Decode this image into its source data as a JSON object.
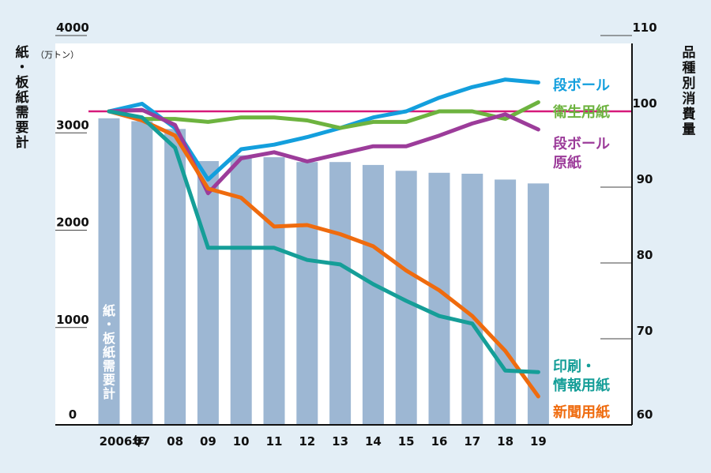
{
  "chart_data": {
    "type": "bar+line",
    "categories": [
      "2006年",
      "07",
      "08",
      "09",
      "10",
      "11",
      "12",
      "13",
      "14",
      "15",
      "16",
      "17",
      "18",
      "19"
    ],
    "left_axis": {
      "title": "紙・板紙需要計",
      "unit": "（万トン）",
      "ylim": [
        0,
        4000
      ],
      "ticks": [
        "4000",
        "3000",
        "2000",
        "1000",
        "0"
      ],
      "tick_values": [
        4000,
        3000,
        2000,
        1000,
        0
      ]
    },
    "right_axis": {
      "title": "品種別消費量",
      "ylim": [
        60,
        110
      ],
      "ticks": [
        "110",
        "100",
        "90",
        "80",
        "70",
        "60"
      ],
      "tick_values": [
        110,
        100,
        90,
        80,
        70,
        60
      ]
    },
    "reference_line": {
      "axis": "right",
      "value": 100,
      "color": "#d6197a"
    },
    "bars": {
      "name": "紙・板紙需要計",
      "label": "紙・板紙需要計",
      "color": "#9db7d3",
      "values": [
        3150,
        3120,
        3040,
        2710,
        2770,
        2750,
        2700,
        2700,
        2670,
        2610,
        2590,
        2580,
        2520,
        2480
      ]
    },
    "series": [
      {
        "name": "段ボール",
        "label": [
          "段ボール"
        ],
        "color": "#139fdd",
        "axis": "right",
        "values": [
          100.0,
          101.0,
          97.8,
          91.0,
          95.0,
          95.6,
          96.6,
          97.8,
          99.2,
          100.0,
          101.8,
          103.2,
          104.2,
          103.8
        ]
      },
      {
        "name": "衛生用紙",
        "label": [
          "衛生用紙"
        ],
        "color": "#6db33f",
        "axis": "right",
        "values": [
          100.0,
          99.0,
          99.0,
          98.6,
          99.2,
          99.2,
          98.8,
          97.8,
          98.6,
          98.6,
          100.0,
          100.0,
          99.0,
          101.2
        ]
      },
      {
        "name": "段ボール原紙",
        "label": [
          "段ボール",
          "原紙"
        ],
        "color": "#9c3c9a",
        "axis": "right",
        "values": [
          100.0,
          100.2,
          98.2,
          89.2,
          93.8,
          94.6,
          93.4,
          94.4,
          95.4,
          95.4,
          96.8,
          98.4,
          99.6,
          97.6
        ]
      },
      {
        "name": "新聞用紙",
        "label": [
          "新聞用紙"
        ],
        "color": "#ef6b0e",
        "axis": "right",
        "values": [
          100.0,
          98.8,
          96.8,
          89.8,
          88.6,
          84.8,
          85.0,
          83.8,
          82.2,
          79.0,
          76.4,
          73.0,
          68.4,
          62.4
        ]
      },
      {
        "name": "印刷・情報用紙",
        "label": [
          "印刷・",
          "情報用紙"
        ],
        "color": "#159e98",
        "axis": "right",
        "values": [
          100.0,
          99.2,
          95.2,
          82.0,
          82.0,
          82.0,
          80.4,
          79.8,
          77.2,
          75.0,
          73.0,
          72.0,
          65.8,
          65.6
        ]
      }
    ]
  }
}
